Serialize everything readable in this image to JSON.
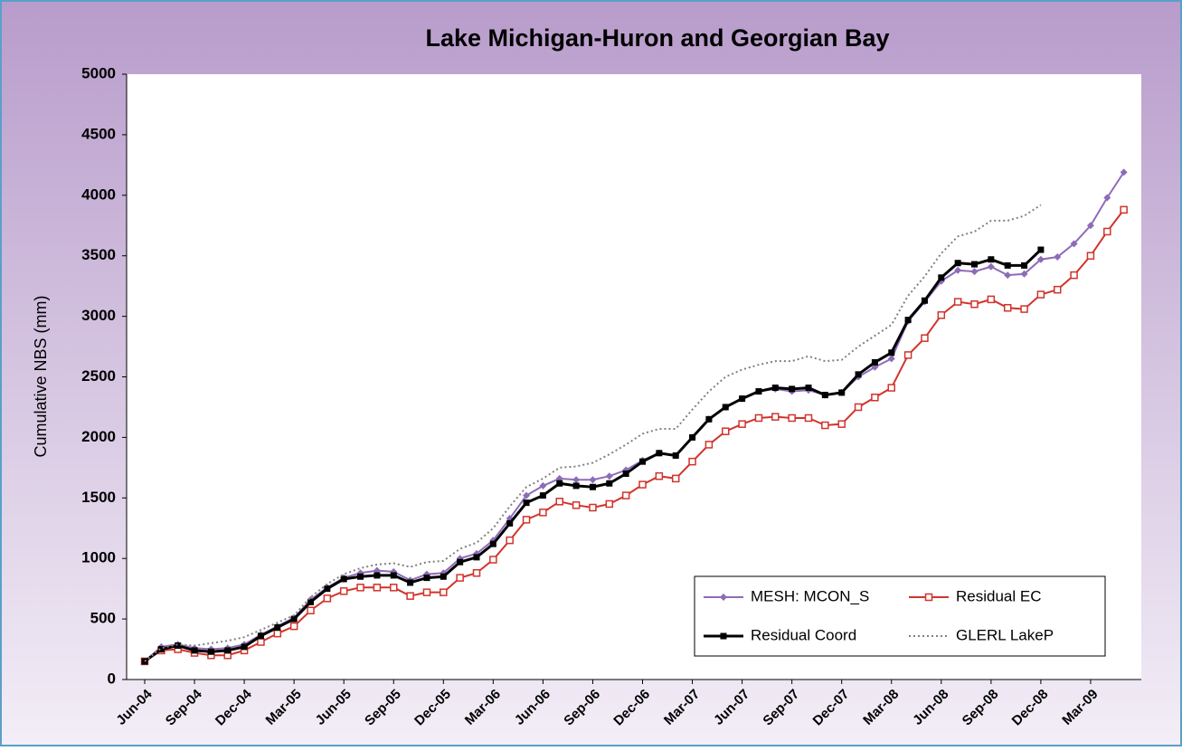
{
  "chart_data": {
    "type": "line",
    "title": "Lake Michigan-Huron and Georgian Bay",
    "y_label": "Cumulative NBS (mm)",
    "categories": [
      "Jun-04",
      null,
      null,
      "Sep-04",
      null,
      null,
      "Dec-04",
      null,
      null,
      "Mar-05",
      null,
      null,
      "Jun-05",
      null,
      null,
      "Sep-05",
      null,
      null,
      "Dec-05",
      null,
      null,
      "Mar-06",
      null,
      null,
      "Jun-06",
      null,
      null,
      "Sep-06",
      null,
      null,
      "Dec-06",
      null,
      null,
      "Mar-07",
      null,
      null,
      "Jun-07",
      null,
      null,
      "Sep-07",
      null,
      null,
      "Dec-07",
      null,
      null,
      "Mar-08",
      null,
      null,
      "Jun-08",
      null,
      null,
      "Sep-08",
      null,
      null,
      "Dec-08",
      null,
      null,
      "Mar-09",
      null,
      null
    ],
    "series": [
      {
        "name": "MESH: MCON_S",
        "color": "#8e6bb8",
        "marker": "diamond",
        "values": [
          150,
          270,
          290,
          260,
          250,
          260,
          290,
          370,
          440,
          510,
          660,
          760,
          840,
          880,
          900,
          890,
          820,
          870,
          880,
          1000,
          1040,
          1150,
          1330,
          1520,
          1600,
          1660,
          1650,
          1650,
          1680,
          1730,
          1810,
          1870,
          1850,
          2000,
          2150,
          2250,
          2320,
          2380,
          2400,
          2380,
          2390,
          2350,
          2370,
          2500,
          2580,
          2650,
          2960,
          3120,
          3290,
          3380,
          3370,
          3410,
          3340,
          3350,
          3470,
          3490,
          3600,
          3750,
          3980,
          4190
        ]
      },
      {
        "name": "Residual EC",
        "color": "#d0342c",
        "marker": "hollow-square",
        "values": [
          150,
          240,
          250,
          220,
          200,
          200,
          240,
          310,
          380,
          440,
          570,
          670,
          730,
          760,
          760,
          760,
          690,
          720,
          720,
          840,
          880,
          990,
          1150,
          1320,
          1380,
          1470,
          1440,
          1420,
          1450,
          1520,
          1610,
          1680,
          1660,
          1800,
          1940,
          2050,
          2110,
          2160,
          2170,
          2160,
          2160,
          2100,
          2110,
          2250,
          2330,
          2410,
          2680,
          2820,
          3010,
          3120,
          3100,
          3140,
          3070,
          3060,
          3180,
          3220,
          3340,
          3500,
          3700,
          3880
        ]
      },
      {
        "name": "Residual Coord",
        "color": "#000000",
        "marker": "square",
        "values": [
          150,
          250,
          280,
          240,
          230,
          240,
          270,
          360,
          430,
          500,
          640,
          750,
          830,
          850,
          860,
          860,
          800,
          840,
          850,
          970,
          1010,
          1120,
          1290,
          1460,
          1520,
          1620,
          1600,
          1590,
          1620,
          1700,
          1800,
          1870,
          1850,
          2000,
          2150,
          2250,
          2320,
          2380,
          2410,
          2400,
          2410,
          2350,
          2370,
          2520,
          2620,
          2700,
          2970,
          3130,
          3320,
          3440,
          3430,
          3470,
          3420,
          3420,
          3550,
          null,
          null,
          null,
          null,
          null
        ]
      },
      {
        "name": "GLERL LakeP",
        "color": "#808080",
        "marker": "dotted",
        "values": [
          150,
          260,
          290,
          280,
          300,
          320,
          350,
          410,
          470,
          530,
          680,
          790,
          870,
          920,
          950,
          960,
          930,
          970,
          980,
          1080,
          1130,
          1250,
          1430,
          1590,
          1660,
          1750,
          1760,
          1790,
          1860,
          1940,
          2030,
          2070,
          2070,
          2230,
          2380,
          2500,
          2560,
          2600,
          2630,
          2630,
          2670,
          2630,
          2640,
          2750,
          2840,
          2930,
          3170,
          3330,
          3520,
          3660,
          3700,
          3790,
          3790,
          3830,
          3920,
          null,
          null,
          null,
          null,
          null
        ]
      }
    ],
    "ylim": [
      0,
      5000
    ],
    "yticks": [
      0,
      500,
      1000,
      1500,
      2000,
      2500,
      3000,
      3500,
      4000,
      4500,
      5000
    ],
    "grid": false,
    "legend": "lower-right"
  }
}
